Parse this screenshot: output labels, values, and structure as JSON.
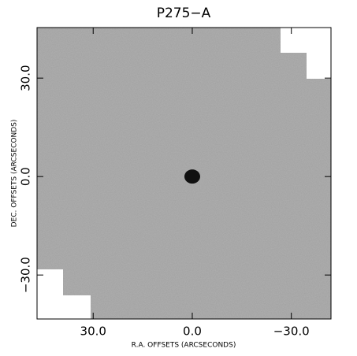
{
  "chart_data": {
    "type": "image",
    "title": "P275−A",
    "xlabel": "R.A. OFFSETS (ARCSECONDS)",
    "ylabel": "DEC. OFFSETS (ARCSECONDS)",
    "xlim": [
      47,
      -42
    ],
    "ylim": [
      -43.4,
      45.4
    ],
    "xticks": [
      {
        "value": 30,
        "label": "30.0"
      },
      {
        "value": 0,
        "label": "0.0"
      },
      {
        "value": -30,
        "label": "−30.0"
      }
    ],
    "yticks": [
      {
        "value": 30,
        "label": "30.0"
      },
      {
        "value": 0,
        "label": "0.0"
      },
      {
        "value": -30,
        "label": "−30.0"
      }
    ],
    "points": {
      "x": [
        0
      ],
      "y": [
        0
      ]
    }
  }
}
